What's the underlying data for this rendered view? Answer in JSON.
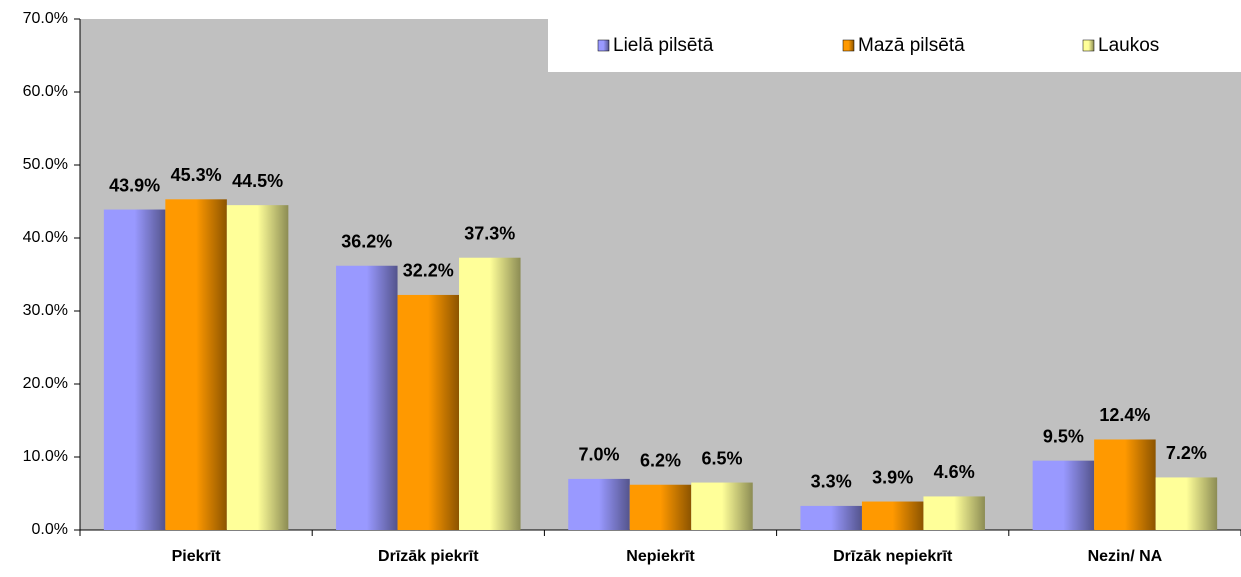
{
  "chart_data": {
    "type": "bar",
    "categories": [
      "Piekrīt",
      "Drīzāk piekrīt",
      "Nepiekrīt",
      "Drīzāk nepiekrīt",
      "Nezin/ NA"
    ],
    "series": [
      {
        "name": "Lielā pilsētā",
        "color": "#9999ff",
        "values": [
          43.9,
          36.2,
          7.0,
          3.3,
          9.5
        ],
        "value_labels": [
          "43.9%",
          "36.2%",
          "7.0%",
          "3.3%",
          "9.5%"
        ]
      },
      {
        "name": "Mazā pilsētā",
        "color": "#ff9900",
        "values": [
          45.3,
          32.2,
          6.2,
          3.9,
          12.4
        ],
        "value_labels": [
          "45.3%",
          "32.2%",
          "6.2%",
          "3.9%",
          "12.4%"
        ]
      },
      {
        "name": "Laukos",
        "color": "#ffff99",
        "values": [
          44.5,
          37.3,
          6.5,
          4.6,
          7.2
        ],
        "value_labels": [
          "44.5%",
          "37.3%",
          "6.5%",
          "4.6%",
          "7.2%"
        ]
      }
    ],
    "ylim": [
      0,
      70
    ],
    "yticks": [
      {
        "value": 0,
        "label": "0.0%"
      },
      {
        "value": 10,
        "label": "10.0%"
      },
      {
        "value": 20,
        "label": "20.0%"
      },
      {
        "value": 30,
        "label": "30.0%"
      },
      {
        "value": 40,
        "label": "40.0%"
      },
      {
        "value": 50,
        "label": "50.0%"
      },
      {
        "value": 60,
        "label": "60.0%"
      },
      {
        "value": 70,
        "label": "70.0%"
      }
    ],
    "legend": "top-right"
  }
}
